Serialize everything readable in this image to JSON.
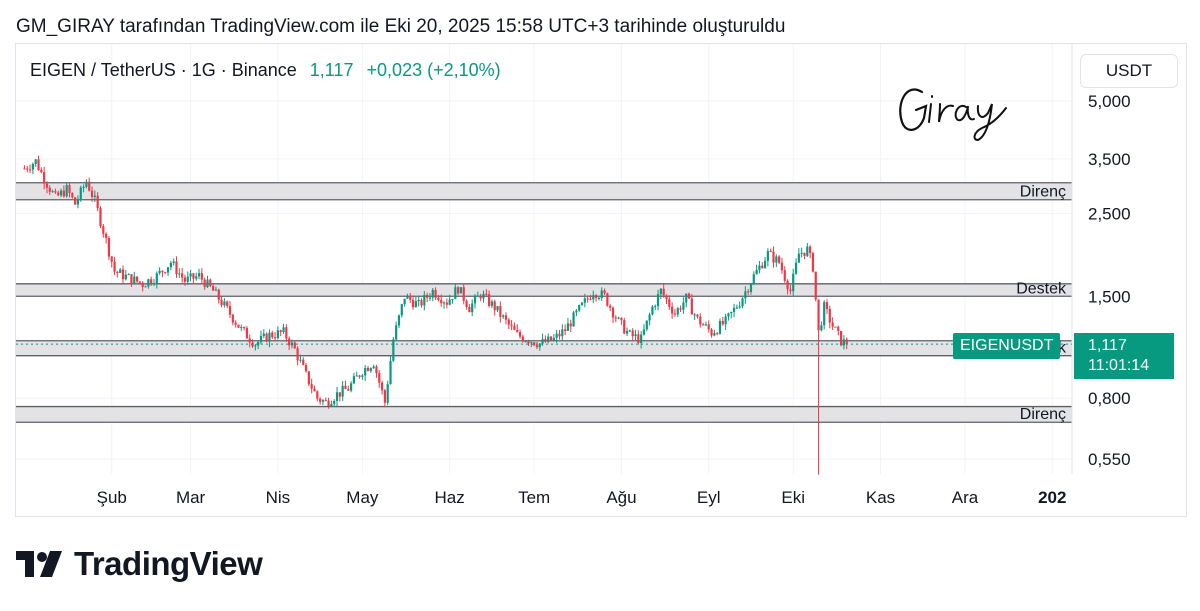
{
  "attribution": "GM_GIRAY tarafından TradingView.com ile Eki 20, 2025 15:58 UTC+3 tarihinde oluşturuldu",
  "legend": {
    "symbol": "EIGEN / TetherUS · 1G · Binance",
    "price": "1,117",
    "change": "+0,023 (+2,10%)"
  },
  "currency_button": "USDT",
  "signature": "Giray",
  "price_tag": {
    "symbol": "EIGENUSDT",
    "price": "1,117",
    "countdown": "11:01:14"
  },
  "brand": {
    "name": "TradingView",
    "logo_text": "17"
  },
  "colors": {
    "up": "#089981",
    "down": "#f23645",
    "zone_fill": "#e3e3e5",
    "zone_line": "#5d606b"
  },
  "chart_data": {
    "type": "candlestick",
    "scale": "log",
    "y_axis": {
      "ticks": [
        5.0,
        3.5,
        2.5,
        1.5,
        0.8,
        0.55
      ],
      "tick_labels": [
        "5,000",
        "3,500",
        "2,500",
        "1,500",
        "0,800",
        "0,550"
      ],
      "unit": "USDT"
    },
    "x_axis": {
      "labels": [
        "Şub",
        "Mar",
        "Nis",
        "May",
        "Haz",
        "Tem",
        "Ağu",
        "Eyl",
        "Eki",
        "Kas",
        "Ara",
        "202"
      ],
      "dates": [
        "2025-02-01",
        "2025-03-01",
        "2025-04-01",
        "2025-05-01",
        "2025-06-01",
        "2025-07-01",
        "2025-08-01",
        "2025-09-01",
        "2025-10-01",
        "2025-11-01",
        "2025-12-01",
        "2026-01-01"
      ]
    },
    "zones": [
      {
        "label": "Direnç",
        "low": 2.72,
        "high": 3.02
      },
      {
        "label": "Destek",
        "low": 1.5,
        "high": 1.62
      },
      {
        "label": "Destek",
        "low": 1.04,
        "high": 1.14
      },
      {
        "label": "Direnç",
        "low": 0.69,
        "high": 0.76
      }
    ],
    "last_price": 1.117,
    "anchors": [
      [
        "2025-01-01",
        3.3
      ],
      [
        "2025-01-05",
        3.45
      ],
      [
        "2025-01-08",
        3.1
      ],
      [
        "2025-01-12",
        2.75
      ],
      [
        "2025-01-16",
        2.9
      ],
      [
        "2025-01-19",
        2.65
      ],
      [
        "2025-01-23",
        3.05
      ],
      [
        "2025-01-26",
        2.7
      ],
      [
        "2025-01-29",
        2.25
      ],
      [
        "2025-02-02",
        1.75
      ],
      [
        "2025-02-07",
        1.68
      ],
      [
        "2025-02-12",
        1.62
      ],
      [
        "2025-02-17",
        1.7
      ],
      [
        "2025-02-22",
        1.85
      ],
      [
        "2025-02-27",
        1.65
      ],
      [
        "2025-03-04",
        1.7
      ],
      [
        "2025-03-09",
        1.55
      ],
      [
        "2025-03-14",
        1.38
      ],
      [
        "2025-03-19",
        1.22
      ],
      [
        "2025-03-24",
        1.12
      ],
      [
        "2025-03-29",
        1.18
      ],
      [
        "2025-04-03",
        1.2
      ],
      [
        "2025-04-07",
        1.08
      ],
      [
        "2025-04-11",
        0.92
      ],
      [
        "2025-04-15",
        0.8
      ],
      [
        "2025-04-18",
        0.78
      ],
      [
        "2025-04-22",
        0.82
      ],
      [
        "2025-04-26",
        0.85
      ],
      [
        "2025-05-01",
        0.95
      ],
      [
        "2025-05-05",
        1.0
      ],
      [
        "2025-05-09",
        0.78
      ],
      [
        "2025-05-12",
        1.15
      ],
      [
        "2025-05-16",
        1.5
      ],
      [
        "2025-05-21",
        1.42
      ],
      [
        "2025-05-26",
        1.55
      ],
      [
        "2025-05-31",
        1.45
      ],
      [
        "2025-06-04",
        1.58
      ],
      [
        "2025-06-08",
        1.4
      ],
      [
        "2025-06-12",
        1.52
      ],
      [
        "2025-06-17",
        1.4
      ],
      [
        "2025-06-21",
        1.28
      ],
      [
        "2025-06-25",
        1.18
      ],
      [
        "2025-06-29",
        1.15
      ],
      [
        "2025-07-03",
        1.12
      ],
      [
        "2025-07-08",
        1.15
      ],
      [
        "2025-07-12",
        1.22
      ],
      [
        "2025-07-17",
        1.38
      ],
      [
        "2025-07-22",
        1.55
      ],
      [
        "2025-07-26",
        1.5
      ],
      [
        "2025-07-31",
        1.28
      ],
      [
        "2025-08-04",
        1.18
      ],
      [
        "2025-08-08",
        1.15
      ],
      [
        "2025-08-12",
        1.4
      ],
      [
        "2025-08-15",
        1.55
      ],
      [
        "2025-08-20",
        1.35
      ],
      [
        "2025-08-24",
        1.48
      ],
      [
        "2025-08-28",
        1.3
      ],
      [
        "2025-09-02",
        1.2
      ],
      [
        "2025-09-07",
        1.28
      ],
      [
        "2025-09-12",
        1.45
      ],
      [
        "2025-09-17",
        1.7
      ],
      [
        "2025-09-22",
        1.95
      ],
      [
        "2025-09-26",
        1.85
      ],
      [
        "2025-09-30",
        1.55
      ],
      [
        "2025-10-03",
        1.95
      ],
      [
        "2025-10-06",
        2.0
      ],
      [
        "2025-10-08",
        1.8
      ],
      [
        "2025-10-10",
        1.2
      ],
      [
        "2025-10-12",
        1.4
      ],
      [
        "2025-10-15",
        1.25
      ],
      [
        "2025-10-18",
        1.14
      ],
      [
        "2025-10-20",
        1.117
      ]
    ],
    "wicks": [
      {
        "date": "2025-10-10",
        "low": 0.5
      }
    ]
  }
}
